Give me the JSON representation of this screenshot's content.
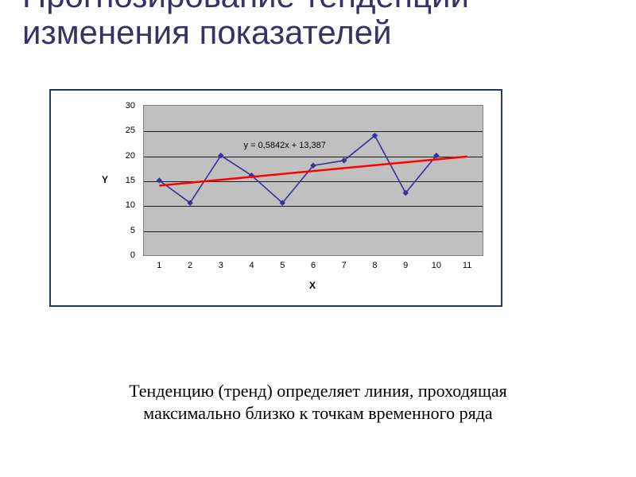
{
  "slide": {
    "title": "Прогнозирование тенденции изменения показателей",
    "caption_line1": "Тенденцию (тренд) определяет линия, проходящая",
    "caption_line2": "максимально близко к точкам временного ряда",
    "title_color": "#333366",
    "title_fontsize": 42,
    "caption_fontsize": 22
  },
  "chart": {
    "type": "line+trend",
    "frame_border_color": "#203864",
    "plot_background": "#c0c0c0",
    "grid_color": "#000000",
    "y": {
      "title": "Y",
      "min": 0,
      "max": 30,
      "tick_step": 5,
      "ticks": [
        0,
        5,
        10,
        15,
        20,
        25,
        30
      ]
    },
    "x": {
      "title": "X",
      "categories": [
        "1",
        "2",
        "3",
        "4",
        "5",
        "6",
        "7",
        "8",
        "9",
        "10",
        "11"
      ]
    },
    "series": {
      "name": "Y",
      "color": "#333399",
      "line_width": 1.6,
      "marker": "diamond",
      "marker_size": 7,
      "values": [
        15,
        10.5,
        20,
        16,
        10.5,
        18,
        19,
        24,
        12.5,
        20
      ]
    },
    "trendline": {
      "color": "#ff0000",
      "line_width": 2.5,
      "slope": 0.5842,
      "intercept": 13.387,
      "equation_label": "y = 0,5842x + 13,387",
      "x_start": 1,
      "x_end": 11
    }
  }
}
